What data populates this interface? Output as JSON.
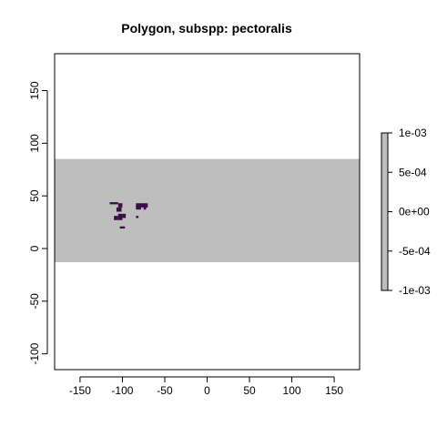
{
  "chart_data": {
    "type": "heatmap",
    "title": "Polygon, subspp: pectoralis",
    "xlabel": "",
    "ylabel": "",
    "xlim": [
      -180,
      180
    ],
    "ylim": [
      -115,
      185
    ],
    "x_ticks": [
      -150,
      -100,
      -50,
      0,
      50,
      100,
      150
    ],
    "y_ticks": [
      -100,
      -50,
      0,
      50,
      100,
      150
    ],
    "x_tick_labels": [
      "-150",
      "-100",
      "-50",
      "0",
      "50",
      "100",
      "150"
    ],
    "y_tick_labels": [
      "-100",
      "-50",
      "0",
      "50",
      "100",
      "150"
    ],
    "raster_extent": {
      "x": [
        -180,
        180
      ],
      "y": [
        -13,
        85
      ]
    },
    "raster_value": 0,
    "raster_color": "#bebebe",
    "polygon_color": "#3b0f45",
    "polygon_cells": [
      [
        -115,
        44,
        10,
        2
      ],
      [
        -105,
        43,
        5,
        4
      ],
      [
        -107,
        39,
        6,
        4
      ],
      [
        -105,
        33,
        5,
        6
      ],
      [
        -110,
        31,
        5,
        4
      ],
      [
        -100,
        33,
        4,
        4
      ],
      [
        -103,
        21,
        6,
        2
      ],
      [
        -84,
        43,
        14,
        4
      ],
      [
        -84,
        40,
        6,
        3
      ],
      [
        -75,
        40,
        3,
        3
      ],
      [
        -84,
        31,
        3,
        2
      ]
    ],
    "grid": false,
    "legend": {
      "position": "right",
      "ticks": [
        0.001,
        0.0005,
        0,
        -0.0005,
        -0.001
      ],
      "labels": [
        "1e-03",
        "5e-04",
        "0e+00",
        "-5e-04",
        "-1e-03"
      ],
      "range": [
        -0.001,
        0.001
      ],
      "color": "#bebebe"
    }
  }
}
